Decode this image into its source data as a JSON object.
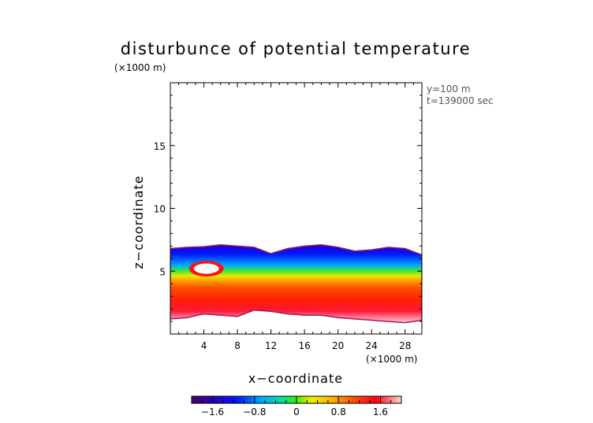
{
  "chart_data": {
    "type": "heatmap",
    "title": "disturbunce of potential temperature",
    "xlabel": "x−coordinate",
    "ylabel": "z−coordinate",
    "x_unit": "(×1000 m)",
    "z_unit": "(×1000 m)",
    "info_lines": [
      "y=100 m",
      "t=139000 sec"
    ],
    "xlim": [
      0,
      30
    ],
    "zlim": [
      0,
      20
    ],
    "x_ticks": [
      "4",
      "8",
      "12",
      "16",
      "20",
      "24",
      "28"
    ],
    "z_ticks": [
      "5",
      "10",
      "15"
    ],
    "x_tick_values": [
      4,
      8,
      12,
      16,
      20,
      24,
      28
    ],
    "z_tick_values": [
      5,
      10,
      15
    ],
    "colorbar": {
      "ticks": [
        "−1.6",
        "−0.8",
        "0",
        "0.8",
        "1.6"
      ],
      "tick_values": [
        -1.6,
        -0.8,
        0,
        0.8,
        1.6
      ],
      "range": [
        -2.0,
        2.0
      ]
    },
    "field": {
      "x": [
        0,
        2,
        4,
        6,
        8,
        10,
        12,
        14,
        16,
        18,
        20,
        22,
        24,
        26,
        28,
        30
      ],
      "cloud_top_z": [
        6.8,
        6.9,
        6.95,
        7.1,
        7.0,
        6.9,
        6.4,
        6.8,
        7.0,
        7.1,
        6.9,
        6.6,
        6.7,
        6.9,
        6.8,
        6.3
      ],
      "cloud_base_z": [
        1.2,
        1.3,
        1.6,
        1.5,
        1.4,
        1.9,
        1.8,
        1.6,
        1.5,
        1.5,
        1.3,
        1.2,
        1.1,
        1.0,
        0.9,
        1.1
      ]
    }
  }
}
